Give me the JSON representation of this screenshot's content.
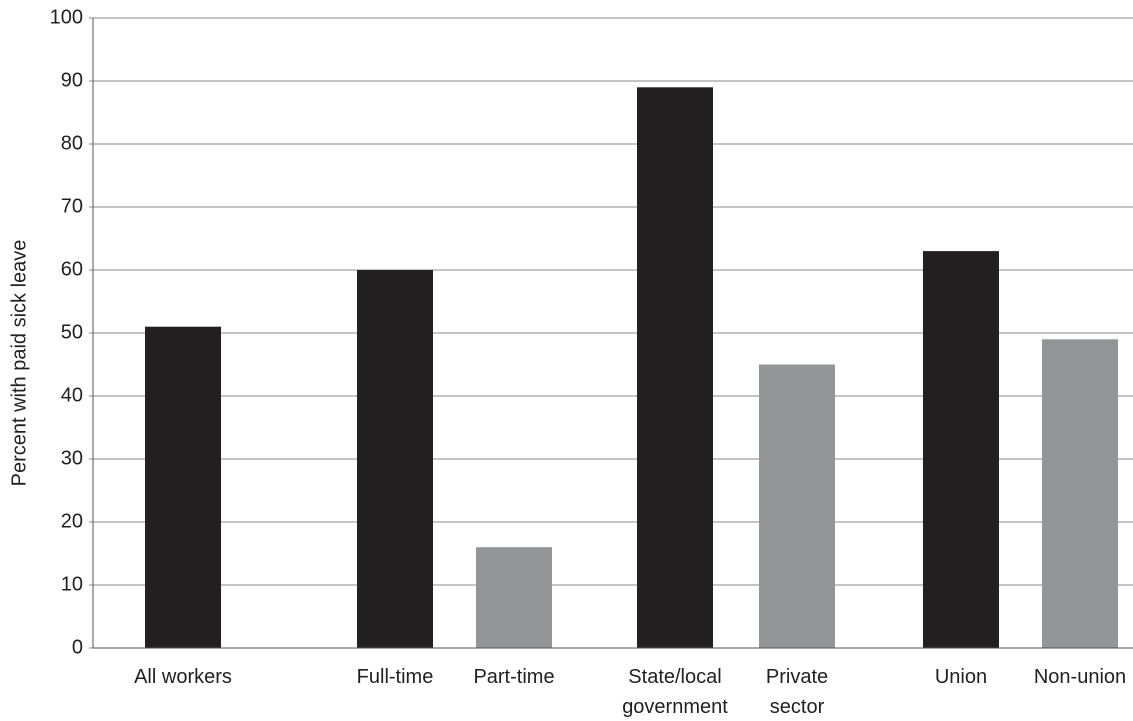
{
  "chart_data": {
    "type": "bar",
    "ylabel": "Percent with paid sick leave",
    "categories": [
      "All workers",
      "Full-time",
      "Part-time",
      "State/local\ngovernment",
      "Private\nsector",
      "Union",
      "Non-union"
    ],
    "values": [
      51,
      60,
      16,
      89,
      45,
      63,
      49
    ],
    "colors": [
      "#231f20",
      "#231f20",
      "#939598",
      "#231f20",
      "#939598",
      "#231f20",
      "#939598"
    ],
    "ylim": [
      0,
      100
    ],
    "yticks": [
      0,
      10,
      20,
      30,
      40,
      50,
      60,
      70,
      80,
      90,
      100
    ],
    "grid": true
  }
}
